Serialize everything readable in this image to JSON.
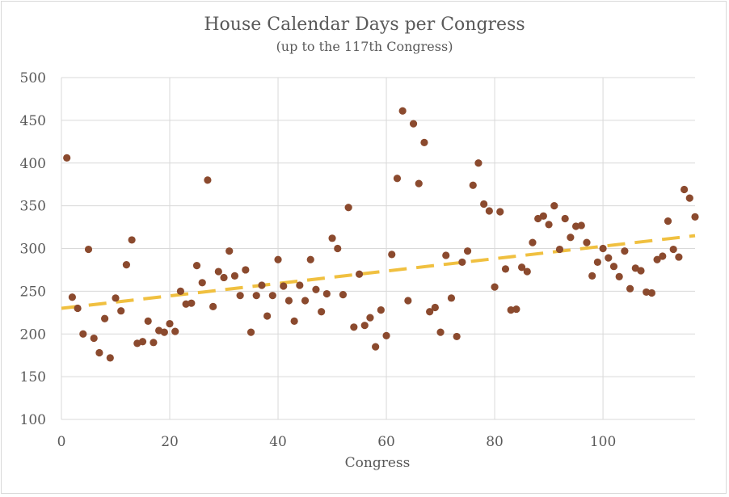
{
  "chart_data": {
    "type": "scatter",
    "title": "House Calendar Days per Congress",
    "subtitle": "(up to the 117th Congress)",
    "xlabel": "Congress",
    "ylabel": "",
    "xlim": [
      0,
      117
    ],
    "ylim": [
      100,
      500
    ],
    "xticks": [
      0,
      20,
      40,
      60,
      80,
      100
    ],
    "yticks": [
      100,
      150,
      200,
      250,
      300,
      350,
      400,
      450,
      500
    ],
    "grid": true,
    "legend": "none",
    "colors": {
      "points": "#8b4a2e",
      "trend": "#f0c040",
      "grid": "#d9d9d9",
      "text": "#595959"
    },
    "trendline": {
      "x": [
        0,
        117
      ],
      "y": [
        230,
        315
      ]
    },
    "points": [
      [
        1,
        406
      ],
      [
        2,
        243
      ],
      [
        3,
        230
      ],
      [
        4,
        200
      ],
      [
        5,
        299
      ],
      [
        6,
        195
      ],
      [
        7,
        178
      ],
      [
        8,
        218
      ],
      [
        9,
        172
      ],
      [
        10,
        242
      ],
      [
        11,
        227
      ],
      [
        12,
        281
      ],
      [
        13,
        310
      ],
      [
        14,
        189
      ],
      [
        15,
        191
      ],
      [
        16,
        215
      ],
      [
        17,
        190
      ],
      [
        18,
        204
      ],
      [
        19,
        202
      ],
      [
        20,
        212
      ],
      [
        21,
        203
      ],
      [
        22,
        250
      ],
      [
        23,
        235
      ],
      [
        24,
        236
      ],
      [
        25,
        280
      ],
      [
        26,
        260
      ],
      [
        27,
        380
      ],
      [
        28,
        232
      ],
      [
        29,
        273
      ],
      [
        30,
        266
      ],
      [
        31,
        297
      ],
      [
        32,
        268
      ],
      [
        33,
        245
      ],
      [
        34,
        275
      ],
      [
        35,
        202
      ],
      [
        36,
        245
      ],
      [
        37,
        257
      ],
      [
        38,
        221
      ],
      [
        39,
        245
      ],
      [
        40,
        287
      ],
      [
        41,
        256
      ],
      [
        42,
        239
      ],
      [
        43,
        215
      ],
      [
        44,
        257
      ],
      [
        45,
        239
      ],
      [
        46,
        287
      ],
      [
        47,
        252
      ],
      [
        48,
        226
      ],
      [
        49,
        247
      ],
      [
        50,
        312
      ],
      [
        51,
        300
      ],
      [
        52,
        246
      ],
      [
        53,
        348
      ],
      [
        54,
        208
      ],
      [
        55,
        270
      ],
      [
        56,
        210
      ],
      [
        57,
        219
      ],
      [
        58,
        185
      ],
      [
        59,
        228
      ],
      [
        60,
        198
      ],
      [
        61,
        293
      ],
      [
        62,
        382
      ],
      [
        63,
        461
      ],
      [
        64,
        239
      ],
      [
        65,
        446
      ],
      [
        66,
        376
      ],
      [
        67,
        424
      ],
      [
        68,
        226
      ],
      [
        69,
        231
      ],
      [
        70,
        202
      ],
      [
        71,
        292
      ],
      [
        72,
        242
      ],
      [
        73,
        197
      ],
      [
        74,
        284
      ],
      [
        75,
        297
      ],
      [
        76,
        374
      ],
      [
        77,
        400
      ],
      [
        78,
        352
      ],
      [
        79,
        344
      ],
      [
        80,
        255
      ],
      [
        81,
        343
      ],
      [
        82,
        276
      ],
      [
        83,
        228
      ],
      [
        84,
        229
      ],
      [
        85,
        278
      ],
      [
        86,
        273
      ],
      [
        87,
        307
      ],
      [
        88,
        335
      ],
      [
        89,
        338
      ],
      [
        90,
        328
      ],
      [
        91,
        350
      ],
      [
        92,
        299
      ],
      [
        93,
        335
      ],
      [
        94,
        313
      ],
      [
        95,
        326
      ],
      [
        96,
        327
      ],
      [
        97,
        307
      ],
      [
        98,
        268
      ],
      [
        99,
        284
      ],
      [
        100,
        300
      ],
      [
        101,
        289
      ],
      [
        102,
        279
      ],
      [
        103,
        267
      ],
      [
        104,
        297
      ],
      [
        105,
        253
      ],
      [
        106,
        277
      ],
      [
        107,
        274
      ],
      [
        108,
        249
      ],
      [
        109,
        248
      ],
      [
        110,
        287
      ],
      [
        111,
        291
      ],
      [
        112,
        332
      ],
      [
        113,
        299
      ],
      [
        114,
        290
      ],
      [
        115,
        369
      ],
      [
        116,
        359
      ],
      [
        117,
        337
      ]
    ]
  }
}
